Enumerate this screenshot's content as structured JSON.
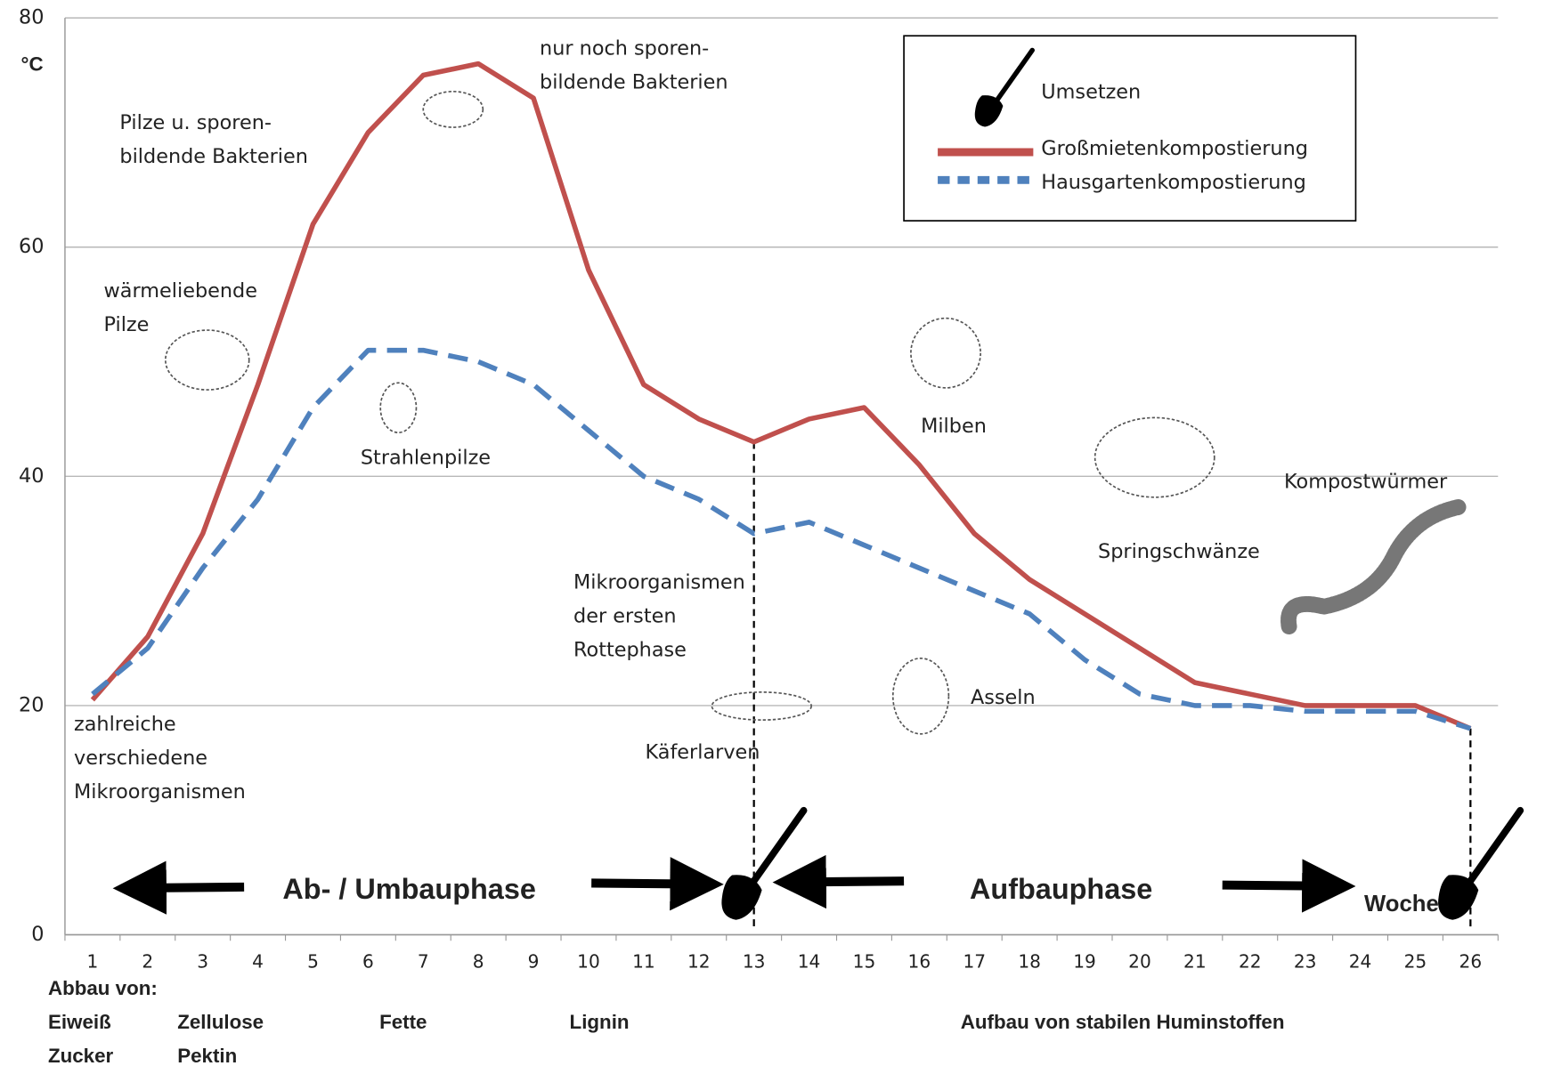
{
  "chart_data": {
    "type": "line",
    "y_label": "°C",
    "x_label": "Woche",
    "categories": [
      "1",
      "2",
      "3",
      "4",
      "5",
      "6",
      "7",
      "8",
      "9",
      "10",
      "11",
      "12",
      "13",
      "14",
      "15",
      "16",
      "17",
      "18",
      "19",
      "20",
      "21",
      "22",
      "23",
      "24",
      "25",
      "26"
    ],
    "ylim": [
      0,
      80
    ],
    "yticks": [
      0,
      20,
      40,
      60,
      80
    ],
    "grid": true,
    "series": [
      {
        "name": "Großmietenkompostierung",
        "color": "#c0504d",
        "style": "solid",
        "values": [
          20.5,
          26,
          35,
          48,
          62,
          70,
          75,
          76,
          73,
          58,
          48,
          45,
          43,
          45,
          46,
          41,
          35,
          31,
          28,
          25,
          22,
          21,
          20,
          20,
          20,
          18
        ]
      },
      {
        "name": "Hausgartenkompostierung",
        "color": "#4f81bd",
        "style": "dashed",
        "values": [
          21,
          25,
          32,
          38,
          46,
          51,
          51,
          50,
          48,
          44,
          40,
          38,
          35,
          36,
          34,
          32,
          30,
          28,
          24,
          21,
          20,
          20,
          19.5,
          19.5,
          19.5,
          18
        ]
      }
    ],
    "events": {
      "name": "Umsetzen",
      "x": [
        13,
        26
      ]
    },
    "phases": [
      "Ab- / Umbauphase",
      "Aufbauphase"
    ],
    "annotations": [
      [
        "Pilze u. sporen-",
        "bildende Bakterien"
      ],
      [
        "nur noch sporen-",
        "bildende Bakterien"
      ],
      [
        "wärmeliebende",
        "Pilze"
      ],
      [
        "Strahlenpilze"
      ],
      [
        "Milben"
      ],
      [
        "Springschwänze"
      ],
      [
        "Kompostwürmer"
      ],
      [
        "Mikroorganismen",
        "der ersten",
        "Rottephase"
      ],
      [
        "Käferlarven"
      ],
      [
        "Asseln"
      ],
      [
        "zahlreiche",
        "verschiedene",
        "Mikroorganismen"
      ]
    ],
    "footer": {
      "title": "Abbau von:",
      "items": [
        "Eiweiß",
        "Zucker",
        "Zellulose",
        "Pektin",
        "Fette",
        "Lignin",
        "Aufbau von stabilen Huminstoffen"
      ]
    }
  }
}
